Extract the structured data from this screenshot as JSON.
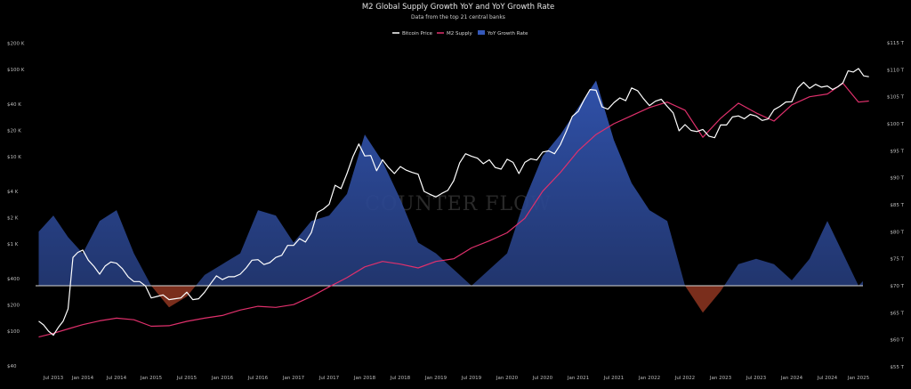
{
  "chart_data": {
    "type": "line",
    "title": "M2 Global Supply Growth YoY and YoY Growth Rate",
    "subtitle": "Data from the top 21 central banks",
    "legend": {
      "placement": "top-center",
      "entries": [
        "Bitcoin Price",
        "M2 Supply",
        "YoY Growth Rate"
      ]
    },
    "grid": false,
    "watermark": "COUNTER FLOW",
    "colors": {
      "bitcoin": "#ffffff",
      "m2": "#e0306c",
      "growth_fill": "#22366e",
      "growth_top": "#3458b8",
      "growth_negative": "#7a2e1c",
      "background": "#000000"
    },
    "x_axis": {
      "type": "date",
      "range": [
        "2013-04",
        "2025-04"
      ],
      "ticks": [
        "Jul 2013",
        "Jan 2014",
        "Jul 2014",
        "Jan 2015",
        "Jul 2015",
        "Jan 2016",
        "Jul 2016",
        "Jan 2017",
        "Jul 2017",
        "Jan 2018",
        "Jul 2018",
        "Jan 2019",
        "Jul 2019",
        "Jan 2020",
        "Jul 2020",
        "Jan 2021",
        "Jul 2021",
        "Jan 2022",
        "Jul 2022",
        "Jan 2023",
        "Jul 2023",
        "Jan 2024",
        "Jul 2024",
        "Jan 2025"
      ]
    },
    "y_axis_left": {
      "label": "",
      "scale": "log",
      "range": [
        40,
        200000
      ],
      "ticks": [
        "$200 K",
        "$100 K",
        "$40 K",
        "$20 K",
        "$10 K",
        "$4 K",
        "$2 K",
        "$1 K",
        "$400",
        "$200",
        "$100",
        "$40"
      ]
    },
    "y_axis_right": {
      "label": "",
      "scale": "linear",
      "range": [
        55,
        115
      ],
      "ticks": [
        "$115 T",
        "$110 T",
        "$105 T",
        "$100 T",
        "$95 T",
        "$90 T",
        "$85 T",
        "$80 T",
        "$75 T",
        "$70 T",
        "$65 T",
        "$60 T",
        "$55 T"
      ]
    },
    "series": [
      {
        "name": "Bitcoin Price",
        "axis": "left",
        "points": [
          [
            "2013-04",
            130
          ],
          [
            "2013-05",
            118
          ],
          [
            "2013-06",
            100
          ],
          [
            "2013-07",
            90
          ],
          [
            "2013-08",
            110
          ],
          [
            "2013-09",
            130
          ],
          [
            "2013-10",
            180
          ],
          [
            "2013-11",
            700
          ],
          [
            "2013-12",
            800
          ],
          [
            "2014-01",
            850
          ],
          [
            "2014-02",
            650
          ],
          [
            "2014-03",
            550
          ],
          [
            "2014-04",
            450
          ],
          [
            "2014-05",
            560
          ],
          [
            "2014-06",
            620
          ],
          [
            "2014-07",
            600
          ],
          [
            "2014-08",
            520
          ],
          [
            "2014-09",
            420
          ],
          [
            "2014-10",
            370
          ],
          [
            "2014-11",
            370
          ],
          [
            "2014-12",
            330
          ],
          [
            "2015-01",
            240
          ],
          [
            "2015-02",
            250
          ],
          [
            "2015-03",
            260
          ],
          [
            "2015-04",
            230
          ],
          [
            "2015-05",
            235
          ],
          [
            "2015-06",
            240
          ],
          [
            "2015-07",
            280
          ],
          [
            "2015-08",
            230
          ],
          [
            "2015-09",
            235
          ],
          [
            "2015-10",
            280
          ],
          [
            "2015-11",
            350
          ],
          [
            "2015-12",
            430
          ],
          [
            "2016-01",
            390
          ],
          [
            "2016-02",
            420
          ],
          [
            "2016-03",
            420
          ],
          [
            "2016-04",
            450
          ],
          [
            "2016-05",
            530
          ],
          [
            "2016-06",
            650
          ],
          [
            "2016-07",
            660
          ],
          [
            "2016-08",
            580
          ],
          [
            "2016-09",
            610
          ],
          [
            "2016-10",
            700
          ],
          [
            "2016-11",
            740
          ],
          [
            "2016-12",
            960
          ],
          [
            "2017-01",
            960
          ],
          [
            "2017-02",
            1150
          ],
          [
            "2017-03",
            1050
          ],
          [
            "2017-04",
            1350
          ],
          [
            "2017-05",
            2300
          ],
          [
            "2017-06",
            2500
          ],
          [
            "2017-07",
            2850
          ],
          [
            "2017-08",
            4700
          ],
          [
            "2017-09",
            4300
          ],
          [
            "2017-10",
            6400
          ],
          [
            "2017-11",
            10000
          ],
          [
            "2017-12",
            14000
          ],
          [
            "2018-01",
            10200
          ],
          [
            "2018-02",
            10300
          ],
          [
            "2018-03",
            6900
          ],
          [
            "2018-04",
            9200
          ],
          [
            "2018-05",
            7500
          ],
          [
            "2018-06",
            6400
          ],
          [
            "2018-07",
            7700
          ],
          [
            "2018-08",
            7000
          ],
          [
            "2018-09",
            6600
          ],
          [
            "2018-10",
            6300
          ],
          [
            "2018-11",
            4000
          ],
          [
            "2018-12",
            3700
          ],
          [
            "2019-01",
            3450
          ],
          [
            "2019-02",
            3800
          ],
          [
            "2019-03",
            4100
          ],
          [
            "2019-04",
            5300
          ],
          [
            "2019-05",
            8500
          ],
          [
            "2019-06",
            10800
          ],
          [
            "2019-07",
            10100
          ],
          [
            "2019-08",
            9600
          ],
          [
            "2019-09",
            8300
          ],
          [
            "2019-10",
            9200
          ],
          [
            "2019-11",
            7500
          ],
          [
            "2019-12",
            7200
          ],
          [
            "2020-01",
            9350
          ],
          [
            "2020-02",
            8600
          ],
          [
            "2020-03",
            6400
          ],
          [
            "2020-04",
            8600
          ],
          [
            "2020-05",
            9450
          ],
          [
            "2020-06",
            9140
          ],
          [
            "2020-07",
            11300
          ],
          [
            "2020-08",
            11650
          ],
          [
            "2020-09",
            10800
          ],
          [
            "2020-10",
            13800
          ],
          [
            "2020-11",
            19700
          ],
          [
            "2020-12",
            29000
          ],
          [
            "2021-01",
            33100
          ],
          [
            "2021-02",
            45200
          ],
          [
            "2021-03",
            58800
          ],
          [
            "2021-04",
            57700
          ],
          [
            "2021-05",
            37300
          ],
          [
            "2021-06",
            35000
          ],
          [
            "2021-07",
            41500
          ],
          [
            "2021-08",
            47100
          ],
          [
            "2021-09",
            43800
          ],
          [
            "2021-10",
            61300
          ],
          [
            "2021-11",
            57000
          ],
          [
            "2021-12",
            46300
          ],
          [
            "2022-01",
            38500
          ],
          [
            "2022-02",
            43200
          ],
          [
            "2022-03",
            45500
          ],
          [
            "2022-04",
            37700
          ],
          [
            "2022-05",
            31800
          ],
          [
            "2022-06",
            19800
          ],
          [
            "2022-07",
            23300
          ],
          [
            "2022-08",
            20000
          ],
          [
            "2022-09",
            19400
          ],
          [
            "2022-10",
            20500
          ],
          [
            "2022-11",
            17200
          ],
          [
            "2022-12",
            16500
          ],
          [
            "2023-01",
            23100
          ],
          [
            "2023-02",
            23100
          ],
          [
            "2023-03",
            28500
          ],
          [
            "2023-04",
            29300
          ],
          [
            "2023-05",
            27200
          ],
          [
            "2023-06",
            30500
          ],
          [
            "2023-07",
            29200
          ],
          [
            "2023-08",
            26000
          ],
          [
            "2023-09",
            27000
          ],
          [
            "2023-10",
            34500
          ],
          [
            "2023-11",
            37700
          ],
          [
            "2023-12",
            42300
          ],
          [
            "2024-01",
            42600
          ],
          [
            "2024-02",
            61200
          ],
          [
            "2024-03",
            71300
          ],
          [
            "2024-04",
            60700
          ],
          [
            "2024-05",
            67500
          ],
          [
            "2024-06",
            62700
          ],
          [
            "2024-07",
            64600
          ],
          [
            "2024-08",
            59000
          ],
          [
            "2024-09",
            63300
          ],
          [
            "2024-10",
            70300
          ],
          [
            "2024-11",
            96400
          ],
          [
            "2024-12",
            93400
          ],
          [
            "2025-01",
            102400
          ],
          [
            "2025-02",
            84400
          ],
          [
            "2025-03",
            82500
          ]
        ]
      },
      {
        "name": "M2 Supply",
        "axis": "right",
        "points": [
          [
            "2013-04",
            60.5
          ],
          [
            "2013-07",
            61.2
          ],
          [
            "2013-10",
            62.0
          ],
          [
            "2014-01",
            62.8
          ],
          [
            "2014-04",
            63.5
          ],
          [
            "2014-07",
            64.0
          ],
          [
            "2014-10",
            63.7
          ],
          [
            "2015-01",
            62.5
          ],
          [
            "2015-04",
            62.6
          ],
          [
            "2015-07",
            63.4
          ],
          [
            "2015-10",
            64.0
          ],
          [
            "2016-01",
            64.5
          ],
          [
            "2016-04",
            65.5
          ],
          [
            "2016-07",
            66.2
          ],
          [
            "2016-10",
            66.0
          ],
          [
            "2017-01",
            66.5
          ],
          [
            "2017-04",
            68.0
          ],
          [
            "2017-07",
            69.8
          ],
          [
            "2017-10",
            71.5
          ],
          [
            "2018-01",
            73.5
          ],
          [
            "2018-04",
            74.5
          ],
          [
            "2018-07",
            74.0
          ],
          [
            "2018-10",
            73.3
          ],
          [
            "2019-01",
            74.5
          ],
          [
            "2019-04",
            75.0
          ],
          [
            "2019-07",
            77.0
          ],
          [
            "2019-10",
            78.3
          ],
          [
            "2020-01",
            79.8
          ],
          [
            "2020-04",
            82.5
          ],
          [
            "2020-07",
            87.5
          ],
          [
            "2020-10",
            91.0
          ],
          [
            "2021-01",
            95.0
          ],
          [
            "2021-04",
            98.0
          ],
          [
            "2021-07",
            100.0
          ],
          [
            "2021-10",
            101.5
          ],
          [
            "2022-01",
            103.0
          ],
          [
            "2022-04",
            104.0
          ],
          [
            "2022-07",
            102.5
          ],
          [
            "2022-10",
            97.5
          ],
          [
            "2023-01",
            101.0
          ],
          [
            "2023-04",
            103.8
          ],
          [
            "2023-07",
            102.0
          ],
          [
            "2023-10",
            100.5
          ],
          [
            "2024-01",
            103.5
          ],
          [
            "2024-04",
            105.0
          ],
          [
            "2024-07",
            105.5
          ],
          [
            "2024-10",
            107.5
          ],
          [
            "2025-01",
            104.0
          ],
          [
            "2025-03",
            104.2
          ]
        ]
      },
      {
        "name": "YoY Growth Rate",
        "axis": "fill",
        "baseline_right_axis": 70,
        "points": [
          [
            "2013-04",
            80
          ],
          [
            "2013-07",
            83
          ],
          [
            "2013-10",
            79
          ],
          [
            "2014-01",
            76
          ],
          [
            "2014-04",
            82
          ],
          [
            "2014-07",
            84
          ],
          [
            "2014-10",
            76
          ],
          [
            "2015-01",
            70
          ],
          [
            "2015-04",
            66
          ],
          [
            "2015-07",
            68
          ],
          [
            "2015-10",
            72
          ],
          [
            "2016-01",
            74
          ],
          [
            "2016-04",
            76
          ],
          [
            "2016-07",
            84
          ],
          [
            "2016-10",
            83
          ],
          [
            "2017-01",
            78
          ],
          [
            "2017-04",
            82
          ],
          [
            "2017-07",
            83
          ],
          [
            "2017-10",
            87
          ],
          [
            "2018-01",
            98
          ],
          [
            "2018-04",
            93
          ],
          [
            "2018-07",
            86
          ],
          [
            "2018-10",
            78
          ],
          [
            "2019-01",
            76
          ],
          [
            "2019-04",
            73
          ],
          [
            "2019-07",
            70
          ],
          [
            "2019-10",
            73
          ],
          [
            "2020-01",
            76
          ],
          [
            "2020-04",
            86
          ],
          [
            "2020-07",
            94
          ],
          [
            "2020-10",
            98
          ],
          [
            "2021-01",
            103
          ],
          [
            "2021-04",
            108
          ],
          [
            "2021-07",
            97
          ],
          [
            "2021-10",
            89
          ],
          [
            "2022-01",
            84
          ],
          [
            "2022-04",
            82
          ],
          [
            "2022-07",
            70
          ],
          [
            "2022-10",
            65
          ],
          [
            "2023-01",
            69
          ],
          [
            "2023-04",
            74
          ],
          [
            "2023-07",
            75
          ],
          [
            "2023-10",
            74
          ],
          [
            "2024-01",
            71
          ],
          [
            "2024-04",
            75
          ],
          [
            "2024-07",
            82
          ],
          [
            "2024-10",
            76
          ],
          [
            "2025-01",
            70
          ],
          [
            "2025-03",
            72
          ]
        ]
      }
    ]
  }
}
